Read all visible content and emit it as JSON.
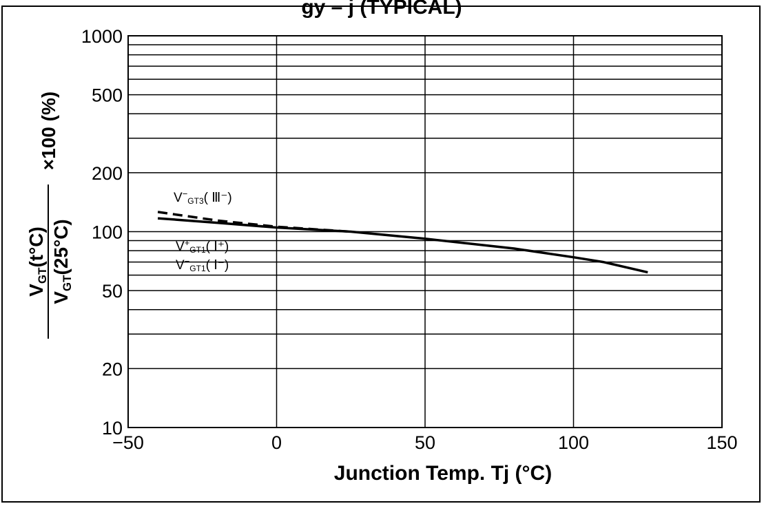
{
  "page": {
    "top_title_fragment": "gy – j (TYPICAL)"
  },
  "colors": {
    "line": "#000000",
    "background": "#ffffff",
    "grid": "#000000"
  },
  "chart_data": {
    "type": "line",
    "title": "",
    "xlabel": "Junction Temp. Tj (°C)",
    "ylabel": {
      "numerator": {
        "main": "V",
        "sub": "GT",
        "paren": "(t°C)"
      },
      "denominator": {
        "main": "V",
        "sub": "GT",
        "paren": "(25°C)"
      },
      "suffix": "×100 (%)"
    },
    "xlim": [
      -50,
      150
    ],
    "ylim": [
      10,
      1000
    ],
    "yscale": "log",
    "grid": true,
    "x_ticks": [
      "−50",
      "0",
      "50",
      "100",
      "150"
    ],
    "y_ticks": [
      "10",
      "20",
      "50",
      "100",
      "200",
      "500",
      "1000"
    ],
    "series": [
      {
        "name": "V⁻GT3 (Ⅲ⁻)",
        "style": "dashed",
        "x": [
          -40,
          -20,
          0,
          25
        ],
        "y": [
          126,
          114,
          106,
          100
        ]
      },
      {
        "name": "V⁺GT1 (Ⅰ⁺), V⁻GT1 (Ⅰ⁻)",
        "style": "solid",
        "x": [
          -40,
          -20,
          0,
          25,
          50,
          80,
          100,
          110,
          125
        ],
        "y": [
          117,
          111,
          105,
          100,
          92,
          82,
          74,
          70,
          62
        ]
      }
    ],
    "annotations": {
      "gt3": {
        "main": "V",
        "sup": "−",
        "sub": "GT3",
        "paren": "( Ⅲ⁻)"
      },
      "gt1p": {
        "main": "V",
        "sup": "+",
        "sub": "GT1",
        "paren": "( Ⅰ⁺)"
      },
      "gt1m": {
        "main": "V",
        "sup": "−",
        "sub": "GT1",
        "paren": "( Ⅰ⁻)"
      }
    }
  }
}
